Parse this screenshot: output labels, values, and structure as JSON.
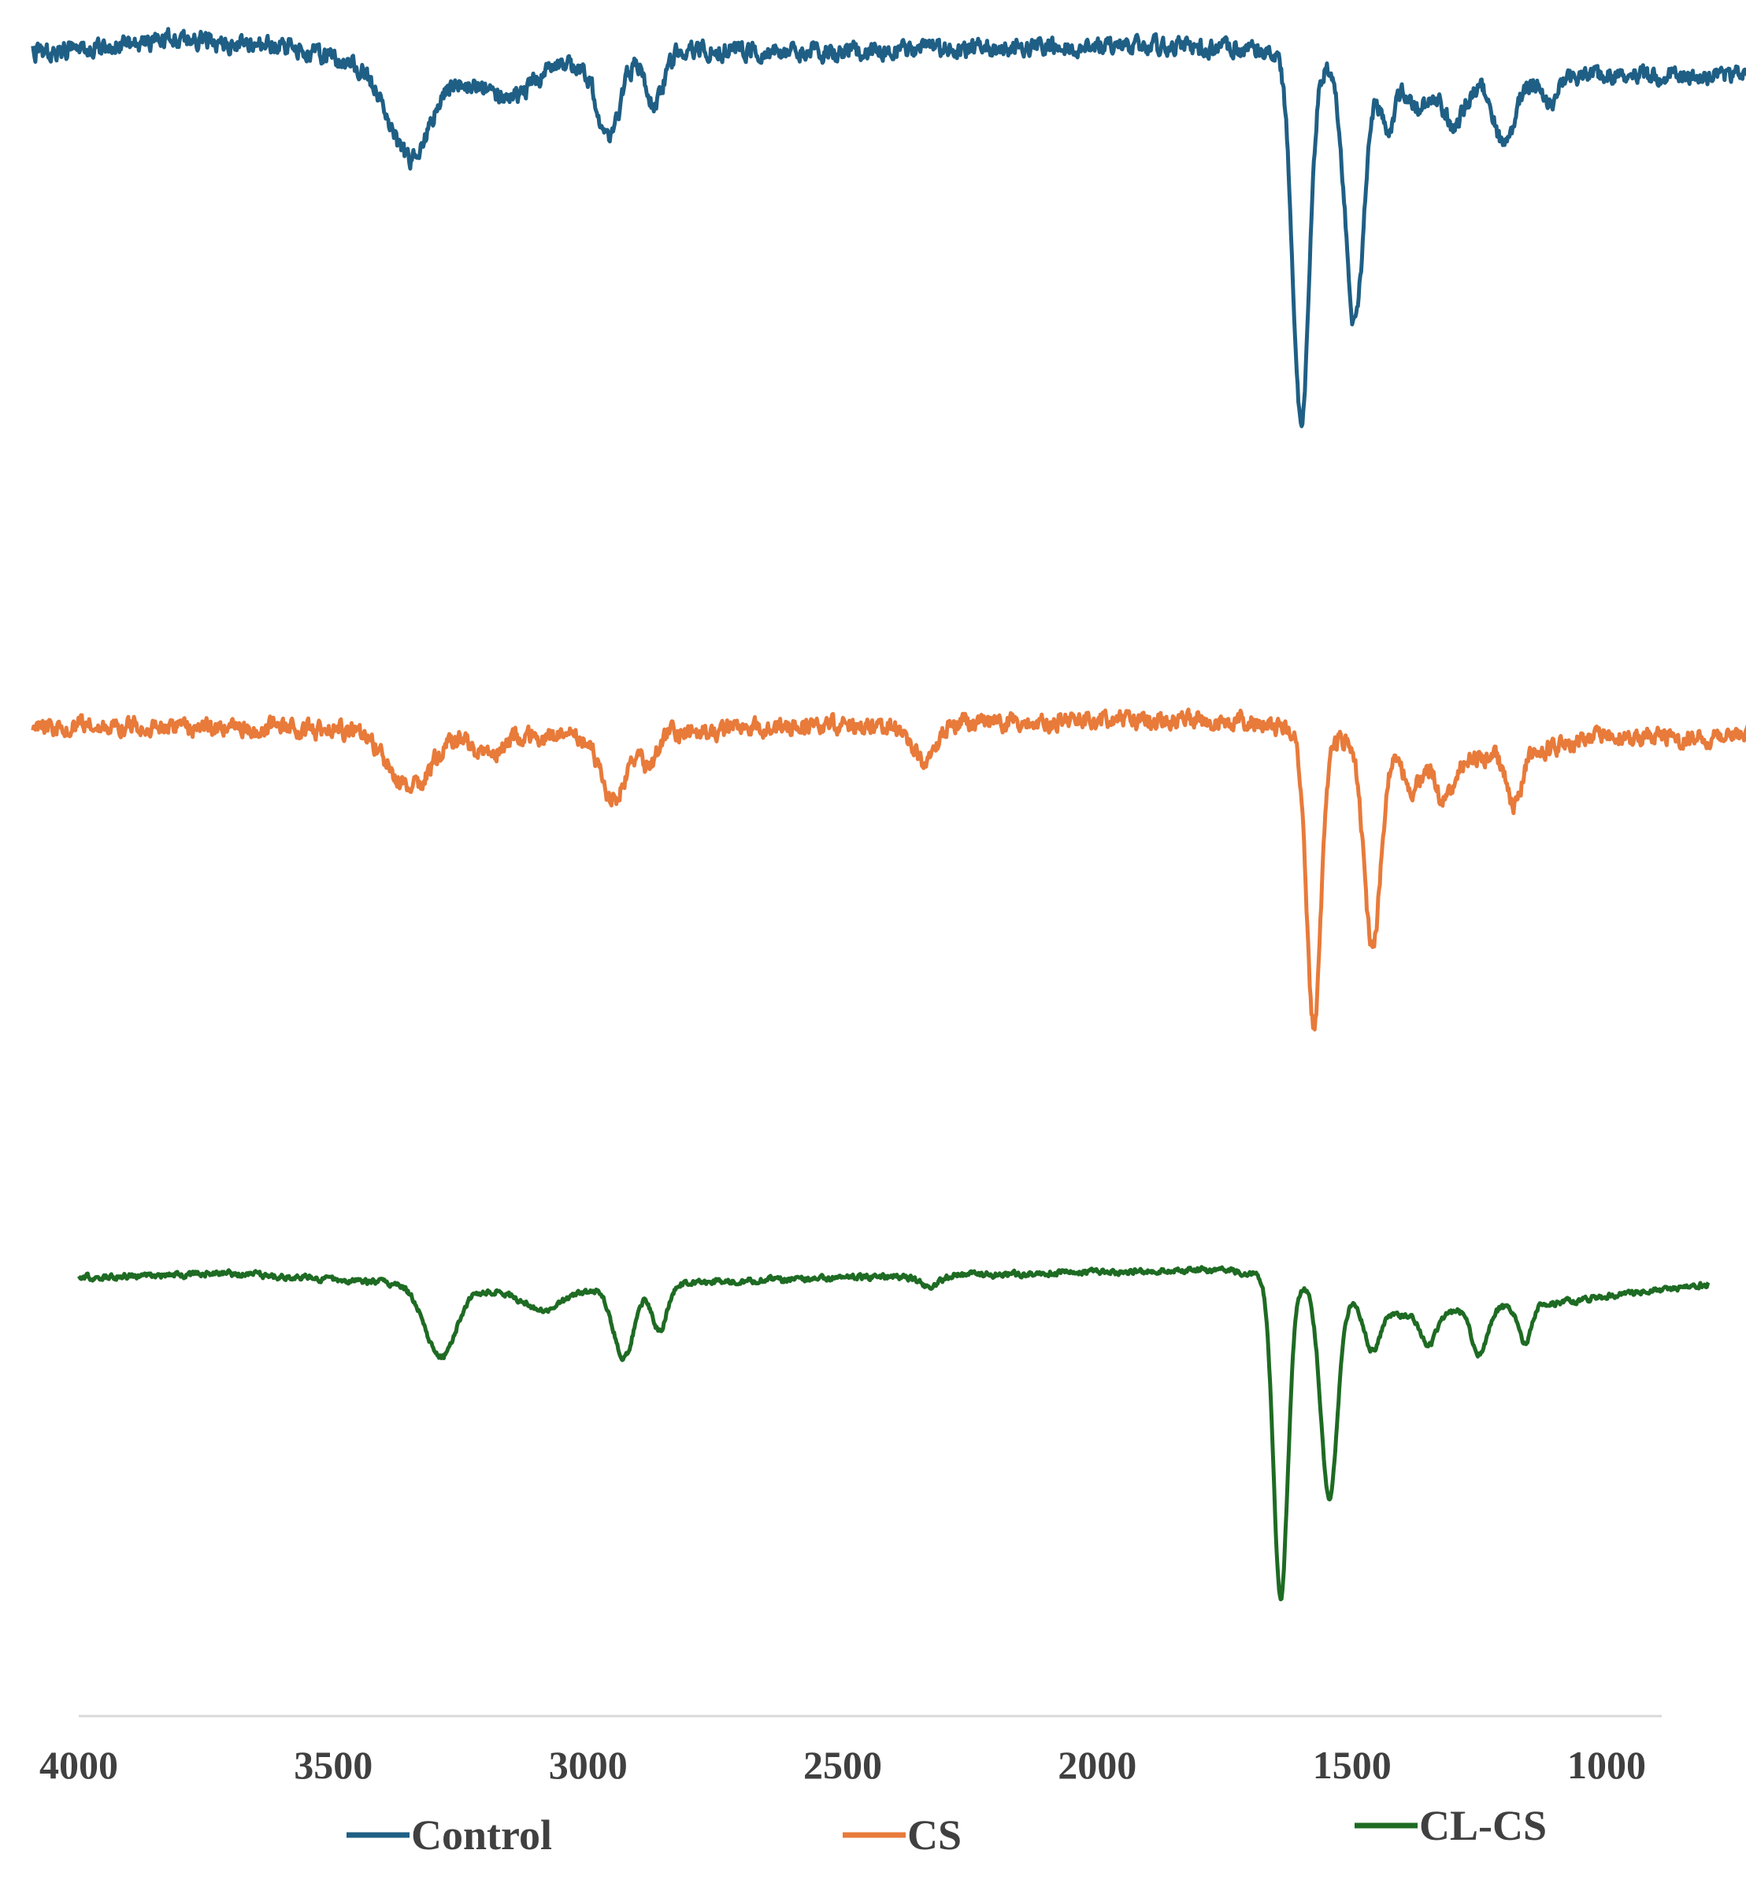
{
  "chart_data": {
    "type": "line",
    "title": "",
    "xlabel": "",
    "ylabel": "",
    "x_reversed": true,
    "xlim": [
      4000,
      800
    ],
    "x_ticks": [
      4000,
      3500,
      3000,
      2500,
      2000,
      1500,
      1000
    ],
    "x_tick_labels": [
      "4000",
      "3500",
      "3000",
      "2500",
      "2000",
      "1500",
      "1000"
    ],
    "y_axis_shown": false,
    "grid": false,
    "legend_position": "bottom",
    "series": [
      {
        "name": "Control",
        "color": "#1f5f85",
        "x_range": [
          4090,
          690
        ],
        "noise": 0.7,
        "baseline": [
          [
            4090,
            0.2
          ],
          [
            3800,
            -0.8
          ],
          [
            3600,
            -0.3
          ],
          [
            3450,
            1.2
          ],
          [
            3200,
            2.2
          ],
          [
            3000,
            1.0
          ],
          [
            2800,
            0.0
          ],
          [
            2500,
            0.2
          ],
          [
            2000,
            -0.4
          ],
          [
            1700,
            0.0
          ],
          [
            1300,
            3.0
          ],
          [
            1000,
            2.0
          ],
          [
            690,
            2.0
          ]
        ],
        "peaks": [
          [
            3350,
            7.0,
            40
          ],
          [
            3160,
            2.0,
            45
          ],
          [
            2960,
            6.5,
            22
          ],
          [
            2870,
            4.0,
            18
          ],
          [
            1600,
            28.0,
            16
          ],
          [
            1495,
            20.0,
            18
          ],
          [
            1430,
            4.0,
            15
          ],
          [
            1370,
            2.0,
            20
          ],
          [
            1300,
            3.0,
            20
          ],
          [
            1200,
            5.0,
            18
          ],
          [
            1110,
            2.0,
            10
          ]
        ]
      },
      {
        "name": "CS",
        "color": "#e87a3a",
        "x_range": [
          4090,
          650
        ],
        "noise": 0.7,
        "baseline": [
          [
            4090,
            0.0
          ],
          [
            3600,
            0.3
          ],
          [
            3400,
            0.5
          ],
          [
            3000,
            1.0
          ],
          [
            2800,
            0.6
          ],
          [
            2500,
            0.0
          ],
          [
            2000,
            -0.3
          ],
          [
            1700,
            -0.3
          ],
          [
            1300,
            3.0
          ],
          [
            1000,
            1.0
          ],
          [
            650,
            1.0
          ]
        ],
        "peaks": [
          [
            3350,
            4.5,
            40
          ],
          [
            3200,
            1.5,
            30
          ],
          [
            2950,
            5.0,
            25
          ],
          [
            2880,
            2.5,
            15
          ],
          [
            2340,
            3.0,
            25
          ],
          [
            1575,
            23.0,
            14
          ],
          [
            1460,
            16.0,
            16
          ],
          [
            1380,
            2.5,
            18
          ],
          [
            1320,
            3.0,
            15
          ],
          [
            1180,
            4.0,
            15
          ]
        ]
      },
      {
        "name": "CL-CS",
        "color": "#1e6b23",
        "x_range": [
          4000,
          800
        ],
        "noise": 0.22,
        "baseline": [
          [
            4000,
            0.0
          ],
          [
            3700,
            -0.3
          ],
          [
            3400,
            0.4
          ],
          [
            3200,
            1.0
          ],
          [
            3000,
            1.0
          ],
          [
            2800,
            0.4
          ],
          [
            2500,
            0.0
          ],
          [
            2000,
            -0.4
          ],
          [
            1750,
            -0.6
          ],
          [
            1650,
            0.0
          ],
          [
            1400,
            3.0
          ],
          [
            1100,
            2.0
          ],
          [
            800,
            0.5
          ]
        ],
        "peaks": [
          [
            3290,
            5.5,
            30
          ],
          [
            3090,
            1.5,
            40
          ],
          [
            2930,
            5.5,
            20
          ],
          [
            2860,
            3.5,
            15
          ],
          [
            2330,
            0.8,
            20
          ],
          [
            1640,
            25.0,
            14
          ],
          [
            1545,
            16.0,
            16
          ],
          [
            1460,
            3.5,
            15
          ],
          [
            1350,
            2.5,
            15
          ],
          [
            1250,
            3.5,
            15
          ],
          [
            1160,
            3.0,
            12
          ]
        ]
      }
    ]
  }
}
